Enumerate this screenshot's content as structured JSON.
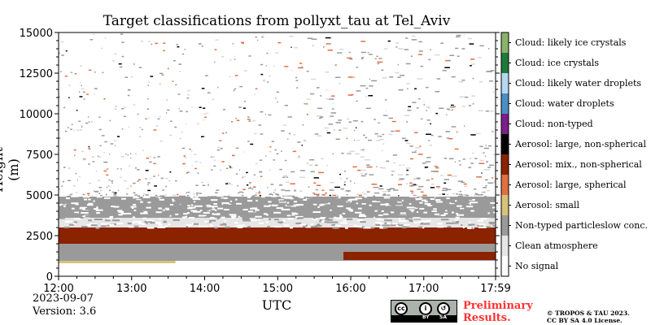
{
  "chart_data": {
    "type": "heatmap",
    "title": "Target classifications from pollyxt_tau at Tel_Aviv",
    "xlabel": "UTC",
    "ylabel": "Height (m)",
    "x_ticks": [
      "12:00",
      "13:00",
      "14:00",
      "15:00",
      "16:00",
      "17:00",
      "17:59"
    ],
    "x_tick_hours": [
      0,
      1,
      2,
      3,
      4,
      5,
      5.983
    ],
    "x_range_hours": [
      0,
      5.983
    ],
    "y_ticks": [
      0,
      2500,
      5000,
      7500,
      10000,
      12500,
      15000
    ],
    "ylim": [
      0,
      15000
    ],
    "categories": [
      {
        "label": "Cloud: likely ice crystals",
        "color": "#8bb36a"
      },
      {
        "label": "Cloud: ice crystals",
        "color": "#1e7a3a"
      },
      {
        "label": "Cloud: likely water droplets",
        "color": "#b6d7f0"
      },
      {
        "label": "Cloud: water droplets",
        "color": "#4a8fc4"
      },
      {
        "label": "Cloud: non-typed",
        "color": "#7c1f8a"
      },
      {
        "label": "Aerosol: large, non-spherical",
        "color": "#000000"
      },
      {
        "label": "Aerosol: mix., non-spherical",
        "color": "#8b2200"
      },
      {
        "label": "Aerosol: large, spherical",
        "color": "#e07040"
      },
      {
        "label": "Aerosol: small",
        "color": "#d8c27a"
      },
      {
        "label": "Non-typed particleslow conc.",
        "color": "#9a9a9a"
      },
      {
        "label": "Clean atmosphere",
        "color": "#e6e6e6"
      },
      {
        "label": "No signal",
        "color": "#ffffff"
      }
    ],
    "layers": [
      {
        "category": "Aerosol: small",
        "from_h": 0,
        "to_h": 1.6,
        "bottom_m": 800,
        "top_m": 950
      },
      {
        "category": "Non-typed particleslow conc.",
        "from_h": 0,
        "to_h": 5.983,
        "bottom_m": 950,
        "top_m": 2000
      },
      {
        "category": "Aerosol: mix., non-spherical",
        "from_h": 0,
        "to_h": 5.983,
        "bottom_m": 2000,
        "top_m": 3000
      },
      {
        "category": "Aerosol: mix., non-spherical",
        "from_h": 3.9,
        "to_h": 5.983,
        "bottom_m": 1000,
        "top_m": 1500
      },
      {
        "category": "Clean atmosphere",
        "from_h": 0,
        "to_h": 5.983,
        "bottom_m": 3000,
        "top_m": 4900
      },
      {
        "category": "Non-typed particleslow conc.",
        "from_h": 0,
        "to_h": 5.983,
        "bottom_m": 3600,
        "top_m": 4900
      }
    ],
    "legend_placement": "right colorbar"
  },
  "footer": {
    "date": "2023-09-07",
    "version": "Version: 3.6",
    "preliminary_line1": "Preliminary",
    "preliminary_line2": "Results.",
    "copyright_line1": "© TROPOS & TAU 2023.",
    "copyright_line2": "CC BY SA 4.0 License.",
    "license_badge": {
      "top": "cc",
      "by": "BY",
      "sa": "SA"
    }
  }
}
